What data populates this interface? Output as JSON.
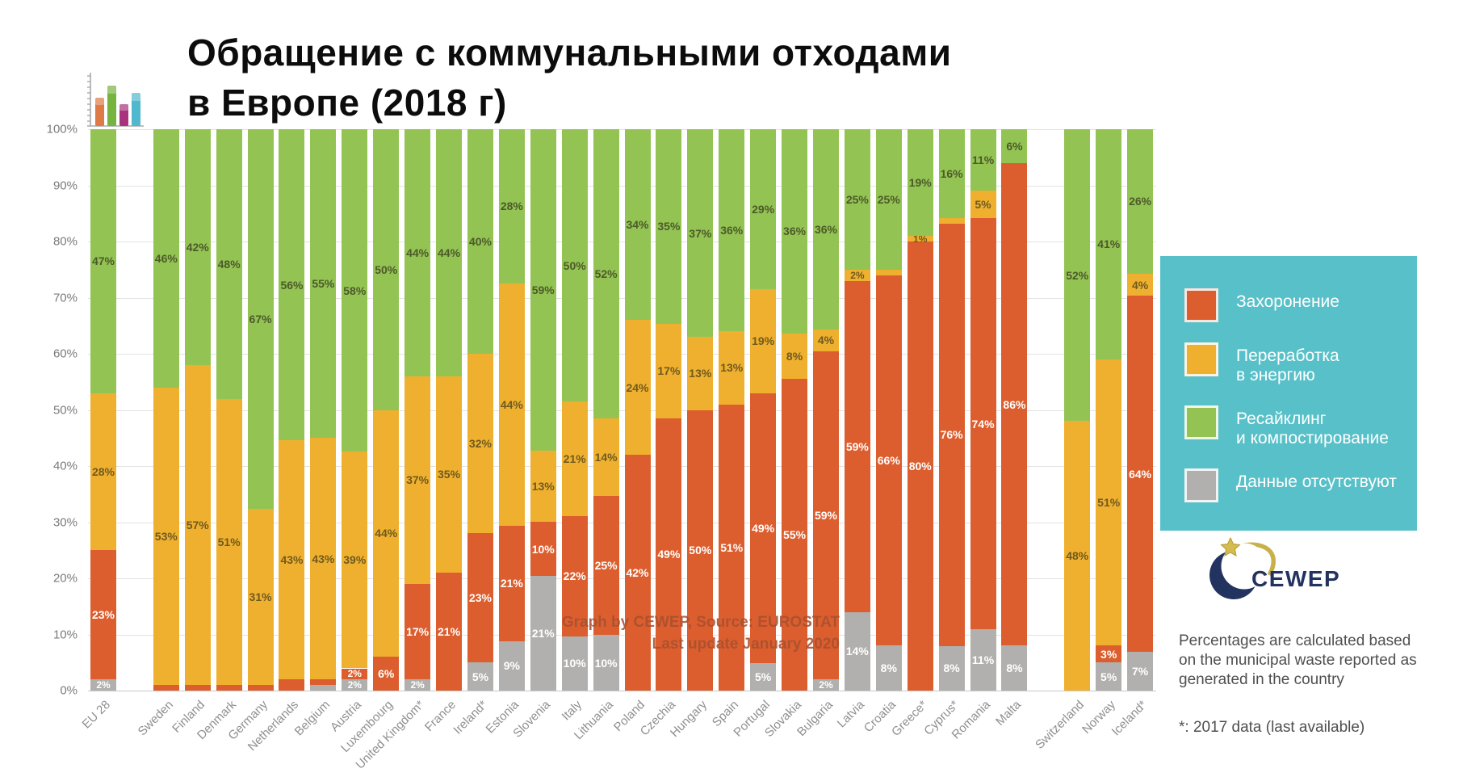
{
  "header": {
    "title_line1": "Обращение с коммунальными отходами",
    "title_line2": "в Европе (2018 г)"
  },
  "watermark": {
    "line1": "Graph by CEWEP, Source: EUROSTAT",
    "line2": "Last update January 2020"
  },
  "logo": {
    "text": "CEWEP"
  },
  "notes": {
    "methodology": "Percentages are calculated based on the municipal waste reported as generated in the country",
    "asterisk": "*: 2017 data (last available)"
  },
  "chart_data": {
    "type": "bar",
    "subtype": "stacked-100",
    "title": "Обращение с коммунальными отходами в Европе (2018 г)",
    "ylim": [
      0,
      100
    ],
    "grid": true,
    "yticks": [
      "100%",
      "90%",
      "80%",
      "70%",
      "60%",
      "50%",
      "40%",
      "30%",
      "20%",
      "10%",
      "0%"
    ],
    "colors": {
      "landfill": "#dc5e2e",
      "wte": "#f0b02f",
      "recycling": "#93c353",
      "nodata": "#b1b0ae"
    },
    "label_colors": {
      "landfill": "#ffffff",
      "wte": "#6e5a1e",
      "recycling": "#4c5a2a",
      "nodata": "#ffffff"
    },
    "legend_background": "#58c0c8",
    "legend_position": "right",
    "legend": [
      {
        "key": "landfill",
        "label": "Захоронение"
      },
      {
        "key": "wte",
        "label": "Переработка\nв энергию"
      },
      {
        "key": "recycling",
        "label": "Ресайклинг\nи компостирование"
      },
      {
        "key": "nodata",
        "label": "Данные отсутствуют"
      }
    ],
    "series_order_bottom_to_top": [
      "nodata",
      "landfill",
      "wte",
      "recycling"
    ],
    "bars": [
      {
        "name": "EU 28",
        "segments": [
          {
            "k": "nodata",
            "v": 2,
            "l": "2%"
          },
          {
            "k": "landfill",
            "v": 23,
            "l": "23%"
          },
          {
            "k": "wte",
            "v": 28,
            "l": "28%"
          },
          {
            "k": "recycling",
            "v": 47,
            "l": "47%"
          }
        ]
      },
      {
        "gap": true
      },
      {
        "name": "Sweden",
        "segments": [
          {
            "k": "landfill",
            "v": 1,
            "l": ""
          },
          {
            "k": "wte",
            "v": 53,
            "l": "53%"
          },
          {
            "k": "recycling",
            "v": 46,
            "l": "46%"
          }
        ]
      },
      {
        "name": "Finland",
        "segments": [
          {
            "k": "landfill",
            "v": 1,
            "l": ""
          },
          {
            "k": "wte",
            "v": 57,
            "l": "57%"
          },
          {
            "k": "recycling",
            "v": 42,
            "l": "42%"
          }
        ]
      },
      {
        "name": "Denmark",
        "segments": [
          {
            "k": "landfill",
            "v": 1,
            "l": ""
          },
          {
            "k": "wte",
            "v": 51,
            "l": "51%"
          },
          {
            "k": "recycling",
            "v": 48,
            "l": "48%"
          }
        ]
      },
      {
        "name": "Germany",
        "segments": [
          {
            "k": "landfill",
            "v": 1,
            "l": ""
          },
          {
            "k": "wte",
            "v": 31,
            "l": "31%"
          },
          {
            "k": "recycling",
            "v": 67,
            "l": "67%"
          }
        ]
      },
      {
        "name": "Netherlands",
        "segments": [
          {
            "k": "landfill",
            "v": 2,
            "l": ""
          },
          {
            "k": "wte",
            "v": 43,
            "l": "43%"
          },
          {
            "k": "recycling",
            "v": 56,
            "l": "56%"
          }
        ]
      },
      {
        "name": "Belgium",
        "segments": [
          {
            "k": "nodata",
            "v": 1,
            "l": ""
          },
          {
            "k": "landfill",
            "v": 1,
            "l": ""
          },
          {
            "k": "wte",
            "v": 43,
            "l": "43%"
          },
          {
            "k": "recycling",
            "v": 55,
            "l": "55%"
          }
        ]
      },
      {
        "name": "Austria",
        "segments": [
          {
            "k": "nodata",
            "v": 2,
            "l": "2%"
          },
          {
            "k": "landfill",
            "v": 2,
            "l": "2%"
          },
          {
            "k": "wte",
            "v": 39,
            "l": "39%"
          },
          {
            "k": "recycling",
            "v": 58,
            "l": "58%"
          }
        ]
      },
      {
        "name": "Luxembourg",
        "segments": [
          {
            "k": "landfill",
            "v": 6,
            "l": "6%"
          },
          {
            "k": "wte",
            "v": 44,
            "l": "44%"
          },
          {
            "k": "recycling",
            "v": 50,
            "l": "50%"
          }
        ]
      },
      {
        "name": "United Kingdom*",
        "segments": [
          {
            "k": "nodata",
            "v": 2,
            "l": "2%"
          },
          {
            "k": "landfill",
            "v": 17,
            "l": "17%"
          },
          {
            "k": "wte",
            "v": 37,
            "l": "37%"
          },
          {
            "k": "recycling",
            "v": 44,
            "l": "44%"
          }
        ]
      },
      {
        "name": "France",
        "segments": [
          {
            "k": "landfill",
            "v": 21,
            "l": "21%"
          },
          {
            "k": "wte",
            "v": 35,
            "l": "35%"
          },
          {
            "k": "recycling",
            "v": 44,
            "l": "44%"
          }
        ]
      },
      {
        "name": "Ireland*",
        "segments": [
          {
            "k": "nodata",
            "v": 5,
            "l": "5%"
          },
          {
            "k": "landfill",
            "v": 23,
            "l": "23%"
          },
          {
            "k": "wte",
            "v": 32,
            "l": "32%"
          },
          {
            "k": "recycling",
            "v": 40,
            "l": "40%"
          }
        ]
      },
      {
        "name": "Estonia",
        "segments": [
          {
            "k": "nodata",
            "v": 9,
            "l": "9%"
          },
          {
            "k": "landfill",
            "v": 21,
            "l": "21%"
          },
          {
            "k": "wte",
            "v": 44,
            "l": "44%"
          },
          {
            "k": "recycling",
            "v": 28,
            "l": "28%"
          }
        ]
      },
      {
        "name": "Slovenia",
        "segments": [
          {
            "k": "nodata",
            "v": 21,
            "l": "21%"
          },
          {
            "k": "landfill",
            "v": 10,
            "l": "10%"
          },
          {
            "k": "wte",
            "v": 13,
            "l": "13%"
          },
          {
            "k": "recycling",
            "v": 59,
            "l": "59%"
          }
        ]
      },
      {
        "name": "Italy",
        "segments": [
          {
            "k": "nodata",
            "v": 10,
            "l": "10%"
          },
          {
            "k": "landfill",
            "v": 22,
            "l": "22%"
          },
          {
            "k": "wte",
            "v": 21,
            "l": "21%"
          },
          {
            "k": "recycling",
            "v": 50,
            "l": "50%"
          }
        ]
      },
      {
        "name": "Lithuania",
        "segments": [
          {
            "k": "nodata",
            "v": 10,
            "l": "10%"
          },
          {
            "k": "landfill",
            "v": 25,
            "l": "25%"
          },
          {
            "k": "wte",
            "v": 14,
            "l": "14%"
          },
          {
            "k": "recycling",
            "v": 52,
            "l": "52%"
          }
        ]
      },
      {
        "name": "Poland",
        "segments": [
          {
            "k": "landfill",
            "v": 42,
            "l": "42%"
          },
          {
            "k": "wte",
            "v": 24,
            "l": "24%"
          },
          {
            "k": "recycling",
            "v": 34,
            "l": "34%"
          }
        ]
      },
      {
        "name": "Czechia",
        "segments": [
          {
            "k": "landfill",
            "v": 49,
            "l": "49%"
          },
          {
            "k": "wte",
            "v": 17,
            "l": "17%"
          },
          {
            "k": "recycling",
            "v": 35,
            "l": "35%"
          }
        ]
      },
      {
        "name": "Hungary",
        "segments": [
          {
            "k": "landfill",
            "v": 50,
            "l": "50%"
          },
          {
            "k": "wte",
            "v": 13,
            "l": "13%"
          },
          {
            "k": "recycling",
            "v": 37,
            "l": "37%"
          }
        ]
      },
      {
        "name": "Spain",
        "segments": [
          {
            "k": "landfill",
            "v": 51,
            "l": "51%"
          },
          {
            "k": "wte",
            "v": 13,
            "l": "13%"
          },
          {
            "k": "recycling",
            "v": 36,
            "l": "36%"
          }
        ]
      },
      {
        "name": "Portugal",
        "segments": [
          {
            "k": "nodata",
            "v": 5,
            "l": "5%"
          },
          {
            "k": "landfill",
            "v": 49,
            "l": "49%"
          },
          {
            "k": "wte",
            "v": 19,
            "l": "19%"
          },
          {
            "k": "recycling",
            "v": 29,
            "l": "29%"
          }
        ]
      },
      {
        "name": "Slovakia",
        "segments": [
          {
            "k": "landfill",
            "v": 55,
            "l": "55%"
          },
          {
            "k": "wte",
            "v": 8,
            "l": "8%"
          },
          {
            "k": "recycling",
            "v": 36,
            "l": "36%"
          }
        ]
      },
      {
        "name": "Bulgaria",
        "segments": [
          {
            "k": "nodata",
            "v": 2,
            "l": "2%"
          },
          {
            "k": "landfill",
            "v": 59,
            "l": "59%"
          },
          {
            "k": "wte",
            "v": 4,
            "l": "4%"
          },
          {
            "k": "recycling",
            "v": 36,
            "l": "36%"
          }
        ]
      },
      {
        "name": "Latvia",
        "segments": [
          {
            "k": "nodata",
            "v": 14,
            "l": "14%"
          },
          {
            "k": "landfill",
            "v": 59,
            "l": "59%"
          },
          {
            "k": "wte",
            "v": 2,
            "l": "2%"
          },
          {
            "k": "recycling",
            "v": 25,
            "l": "25%"
          }
        ]
      },
      {
        "name": "Croatia",
        "segments": [
          {
            "k": "nodata",
            "v": 8,
            "l": "8%"
          },
          {
            "k": "landfill",
            "v": 66,
            "l": "66%"
          },
          {
            "k": "wte",
            "v": 1,
            "l": ""
          },
          {
            "k": "recycling",
            "v": 25,
            "l": "25%"
          }
        ]
      },
      {
        "name": "Greece*",
        "segments": [
          {
            "k": "landfill",
            "v": 80,
            "l": "80%"
          },
          {
            "k": "wte",
            "v": 1,
            "l": "1%"
          },
          {
            "k": "recycling",
            "v": 19,
            "l": "19%"
          }
        ]
      },
      {
        "name": "Cyprus*",
        "segments": [
          {
            "k": "nodata",
            "v": 8,
            "l": "8%"
          },
          {
            "k": "landfill",
            "v": 76,
            "l": "76%"
          },
          {
            "k": "wte",
            "v": 1,
            "l": ""
          },
          {
            "k": "recycling",
            "v": 16,
            "l": "16%"
          }
        ]
      },
      {
        "name": "Romania",
        "segments": [
          {
            "k": "nodata",
            "v": 11,
            "l": "11%"
          },
          {
            "k": "landfill",
            "v": 74,
            "l": "74%"
          },
          {
            "k": "wte",
            "v": 5,
            "l": "5%"
          },
          {
            "k": "recycling",
            "v": 11,
            "l": "11%"
          }
        ]
      },
      {
        "name": "Malta",
        "segments": [
          {
            "k": "nodata",
            "v": 8,
            "l": "8%"
          },
          {
            "k": "landfill",
            "v": 86,
            "l": "86%"
          },
          {
            "k": "recycling",
            "v": 6,
            "l": "6%"
          }
        ]
      },
      {
        "gap": true
      },
      {
        "name": "Switzerland",
        "segments": [
          {
            "k": "wte",
            "v": 48,
            "l": "48%"
          },
          {
            "k": "recycling",
            "v": 52,
            "l": "52%"
          }
        ]
      },
      {
        "name": "Norway",
        "segments": [
          {
            "k": "nodata",
            "v": 5,
            "l": "5%"
          },
          {
            "k": "landfill",
            "v": 3,
            "l": "3%"
          },
          {
            "k": "wte",
            "v": 51,
            "l": "51%"
          },
          {
            "k": "recycling",
            "v": 41,
            "l": "41%"
          }
        ]
      },
      {
        "name": "Iceland*",
        "segments": [
          {
            "k": "nodata",
            "v": 7,
            "l": "7%"
          },
          {
            "k": "landfill",
            "v": 64,
            "l": "64%"
          },
          {
            "k": "wte",
            "v": 4,
            "l": "4%"
          },
          {
            "k": "recycling",
            "v": 26,
            "l": "26%"
          }
        ]
      }
    ]
  }
}
